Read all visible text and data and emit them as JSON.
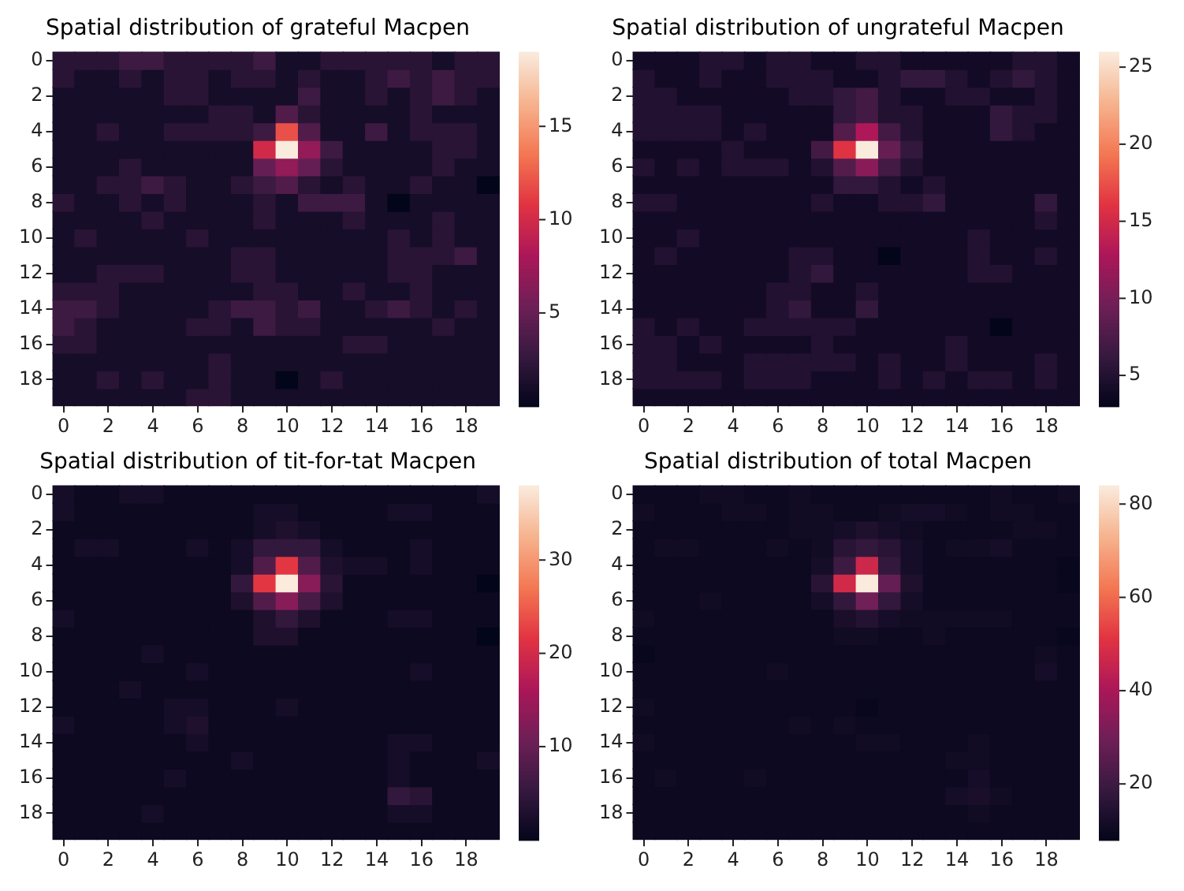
{
  "chart_data": [
    {
      "type": "heatmap",
      "title": "Spatial distribution of grateful Macpen",
      "categories": [
        "0",
        null,
        "2",
        null,
        "4",
        null,
        "6",
        null,
        "8",
        null,
        "10",
        null,
        "12",
        null,
        "14",
        null,
        "16",
        null,
        "18",
        null
      ],
      "y_categories": [
        "0",
        null,
        "2",
        null,
        "4",
        null,
        "6",
        null,
        "8",
        null,
        "10",
        null,
        "12",
        null,
        "14",
        null,
        "16",
        null,
        "18",
        null
      ],
      "clim": [
        0,
        19
      ],
      "cticks": [
        5,
        10,
        15
      ],
      "cells": [
        [
          2,
          2,
          2,
          3,
          3,
          2,
          2,
          2,
          2,
          3,
          1,
          1,
          2,
          2,
          2,
          2,
          2,
          1,
          2,
          2
        ],
        [
          2,
          1,
          1,
          2,
          1,
          2,
          2,
          1,
          2,
          2,
          1,
          2,
          1,
          1,
          2,
          3,
          2,
          3,
          2,
          2
        ],
        [
          1,
          1,
          1,
          1,
          1,
          2,
          2,
          1,
          1,
          1,
          1,
          3,
          1,
          1,
          2,
          1,
          2,
          3,
          2,
          1
        ],
        [
          1,
          1,
          1,
          1,
          1,
          1,
          1,
          2,
          2,
          1,
          4,
          2,
          1,
          1,
          1,
          1,
          2,
          1,
          1,
          1
        ],
        [
          1,
          1,
          2,
          1,
          1,
          2,
          2,
          2,
          2,
          3,
          12,
          4,
          1,
          1,
          3,
          1,
          2,
          2,
          2,
          1
        ],
        [
          1,
          1,
          1,
          1,
          1,
          1,
          1,
          1,
          1,
          10,
          19,
          7,
          3,
          1,
          1,
          1,
          1,
          2,
          2,
          1
        ],
        [
          1,
          1,
          1,
          2,
          1,
          1,
          1,
          1,
          1,
          5,
          7,
          5,
          2,
          1,
          1,
          1,
          1,
          2,
          1,
          1
        ],
        [
          1,
          1,
          2,
          2,
          3,
          2,
          1,
          1,
          2,
          3,
          4,
          2,
          1,
          2,
          1,
          1,
          2,
          1,
          1,
          0
        ],
        [
          2,
          1,
          1,
          2,
          1,
          2,
          1,
          1,
          1,
          2,
          1,
          3,
          3,
          3,
          1,
          0,
          1,
          1,
          1,
          1
        ],
        [
          1,
          1,
          1,
          1,
          2,
          1,
          1,
          1,
          1,
          2,
          1,
          1,
          1,
          2,
          1,
          1,
          1,
          2,
          1,
          1
        ],
        [
          1,
          2,
          1,
          1,
          1,
          1,
          2,
          1,
          1,
          1,
          1,
          1,
          1,
          1,
          1,
          2,
          1,
          2,
          1,
          1
        ],
        [
          1,
          1,
          1,
          1,
          1,
          1,
          1,
          1,
          2,
          2,
          1,
          1,
          1,
          1,
          1,
          2,
          2,
          2,
          3,
          1
        ],
        [
          1,
          1,
          2,
          2,
          2,
          1,
          1,
          1,
          2,
          2,
          1,
          1,
          1,
          1,
          1,
          2,
          2,
          1,
          1,
          1
        ],
        [
          2,
          2,
          2,
          1,
          1,
          1,
          1,
          1,
          1,
          2,
          2,
          1,
          1,
          2,
          1,
          1,
          2,
          1,
          1,
          1
        ],
        [
          3,
          3,
          2,
          1,
          1,
          1,
          1,
          2,
          3,
          3,
          2,
          3,
          1,
          1,
          2,
          3,
          2,
          1,
          2,
          1
        ],
        [
          3,
          2,
          1,
          1,
          1,
          1,
          2,
          2,
          1,
          3,
          2,
          2,
          1,
          1,
          1,
          1,
          1,
          2,
          1,
          1
        ],
        [
          2,
          2,
          1,
          1,
          1,
          1,
          1,
          1,
          1,
          1,
          1,
          1,
          1,
          2,
          2,
          1,
          1,
          1,
          1,
          1
        ],
        [
          1,
          1,
          1,
          1,
          1,
          1,
          1,
          2,
          1,
          1,
          1,
          1,
          1,
          1,
          1,
          1,
          1,
          1,
          1,
          1
        ],
        [
          1,
          1,
          2,
          1,
          2,
          1,
          1,
          2,
          1,
          1,
          0,
          1,
          2,
          1,
          1,
          1,
          1,
          1,
          1,
          1
        ],
        [
          1,
          1,
          1,
          1,
          1,
          1,
          2,
          2,
          1,
          1,
          1,
          1,
          1,
          1,
          1,
          1,
          1,
          1,
          1,
          1
        ]
      ]
    },
    {
      "type": "heatmap",
      "title": "Spatial distribution of ungrateful Macpen",
      "categories": [
        "0",
        null,
        "2",
        null,
        "4",
        null,
        "6",
        null,
        "8",
        null,
        "10",
        null,
        "12",
        null,
        "14",
        null,
        "16",
        null,
        "18",
        null
      ],
      "y_categories": [
        "0",
        null,
        "2",
        null,
        "4",
        null,
        "6",
        null,
        "8",
        null,
        "10",
        null,
        "12",
        null,
        "14",
        null,
        "16",
        null,
        "18",
        null
      ],
      "clim": [
        3,
        26
      ],
      "cticks": [
        5,
        10,
        15,
        20,
        25
      ],
      "cells": [
        [
          4,
          4,
          4,
          5,
          5,
          4,
          5,
          5,
          4,
          4,
          5,
          5,
          4,
          4,
          4,
          4,
          4,
          5,
          5,
          4
        ],
        [
          5,
          4,
          4,
          5,
          4,
          4,
          5,
          5,
          5,
          4,
          4,
          5,
          6,
          6,
          5,
          4,
          5,
          6,
          5,
          4
        ],
        [
          5,
          5,
          4,
          4,
          4,
          4,
          4,
          5,
          5,
          6,
          7,
          5,
          4,
          4,
          5,
          5,
          4,
          4,
          5,
          4
        ],
        [
          5,
          5,
          5,
          5,
          4,
          4,
          4,
          4,
          4,
          6,
          7,
          5,
          5,
          4,
          4,
          4,
          6,
          5,
          5,
          4
        ],
        [
          5,
          5,
          5,
          5,
          4,
          5,
          4,
          4,
          4,
          8,
          13,
          7,
          5,
          4,
          4,
          4,
          6,
          5,
          4,
          4
        ],
        [
          4,
          4,
          4,
          4,
          5,
          4,
          4,
          4,
          7,
          16,
          26,
          9,
          6,
          4,
          4,
          4,
          4,
          4,
          4,
          4
        ],
        [
          5,
          4,
          5,
          4,
          5,
          5,
          5,
          4,
          5,
          8,
          11,
          7,
          5,
          4,
          4,
          4,
          4,
          4,
          4,
          4
        ],
        [
          4,
          4,
          4,
          4,
          4,
          4,
          4,
          4,
          4,
          6,
          6,
          5,
          4,
          5,
          4,
          4,
          4,
          4,
          4,
          4
        ],
        [
          5,
          5,
          4,
          4,
          4,
          4,
          4,
          4,
          5,
          4,
          4,
          5,
          5,
          6,
          4,
          4,
          4,
          4,
          6,
          4
        ],
        [
          4,
          4,
          4,
          4,
          4,
          4,
          4,
          4,
          4,
          4,
          4,
          4,
          4,
          4,
          4,
          4,
          4,
          4,
          5,
          4
        ],
        [
          4,
          4,
          5,
          4,
          4,
          4,
          4,
          4,
          4,
          4,
          4,
          4,
          4,
          4,
          4,
          5,
          4,
          4,
          4,
          4
        ],
        [
          4,
          5,
          4,
          4,
          4,
          4,
          4,
          5,
          5,
          4,
          4,
          3,
          4,
          4,
          4,
          5,
          4,
          4,
          5,
          4
        ],
        [
          4,
          4,
          4,
          4,
          4,
          4,
          4,
          5,
          6,
          4,
          4,
          4,
          4,
          4,
          4,
          5,
          5,
          4,
          4,
          4
        ],
        [
          4,
          4,
          4,
          4,
          4,
          4,
          5,
          5,
          4,
          4,
          5,
          4,
          4,
          4,
          4,
          4,
          4,
          4,
          4,
          4
        ],
        [
          4,
          4,
          4,
          4,
          4,
          4,
          5,
          6,
          4,
          4,
          6,
          4,
          4,
          4,
          4,
          4,
          4,
          4,
          4,
          4
        ],
        [
          5,
          4,
          5,
          4,
          4,
          5,
          5,
          5,
          5,
          5,
          4,
          4,
          4,
          4,
          4,
          4,
          3,
          4,
          4,
          4
        ],
        [
          5,
          5,
          4,
          5,
          4,
          4,
          4,
          4,
          5,
          4,
          4,
          4,
          4,
          4,
          5,
          4,
          4,
          4,
          4,
          4
        ],
        [
          5,
          5,
          4,
          4,
          4,
          5,
          5,
          5,
          5,
          5,
          4,
          5,
          4,
          4,
          5,
          4,
          4,
          4,
          5,
          4
        ],
        [
          5,
          5,
          5,
          5,
          4,
          5,
          5,
          5,
          4,
          4,
          4,
          5,
          4,
          5,
          4,
          5,
          5,
          4,
          5,
          4
        ],
        [
          4,
          4,
          4,
          4,
          4,
          4,
          4,
          4,
          4,
          4,
          4,
          4,
          4,
          4,
          4,
          4,
          4,
          4,
          4,
          4
        ]
      ]
    },
    {
      "type": "heatmap",
      "title": "Spatial distribution of tit-for-tat Macpen",
      "categories": [
        "0",
        null,
        "2",
        null,
        "4",
        null,
        "6",
        null,
        "8",
        null,
        "10",
        null,
        "12",
        null,
        "14",
        null,
        "16",
        null,
        "18",
        null
      ],
      "y_categories": [
        "0",
        null,
        "2",
        null,
        "4",
        null,
        "6",
        null,
        "8",
        null,
        "10",
        null,
        "12",
        null,
        "14",
        null,
        "16",
        null,
        "18",
        null
      ],
      "clim": [
        0,
        38
      ],
      "cticks": [
        10,
        20,
        30
      ],
      "cells": [
        [
          2,
          1,
          1,
          2,
          2,
          1,
          1,
          1,
          1,
          1,
          1,
          1,
          1,
          1,
          1,
          1,
          1,
          1,
          1,
          2
        ],
        [
          2,
          1,
          1,
          1,
          1,
          1,
          1,
          1,
          1,
          2,
          2,
          1,
          1,
          1,
          1,
          2,
          2,
          1,
          1,
          1
        ],
        [
          1,
          1,
          1,
          1,
          1,
          1,
          1,
          1,
          1,
          2,
          3,
          2,
          1,
          1,
          1,
          1,
          1,
          1,
          1,
          1
        ],
        [
          1,
          2,
          2,
          1,
          1,
          1,
          2,
          1,
          2,
          5,
          5,
          5,
          2,
          1,
          1,
          1,
          2,
          1,
          1,
          1
        ],
        [
          1,
          1,
          1,
          1,
          1,
          1,
          1,
          1,
          2,
          8,
          22,
          8,
          3,
          2,
          2,
          1,
          2,
          1,
          1,
          1
        ],
        [
          1,
          1,
          1,
          1,
          1,
          1,
          1,
          1,
          5,
          22,
          38,
          13,
          4,
          1,
          1,
          1,
          1,
          1,
          1,
          0
        ],
        [
          1,
          1,
          1,
          1,
          1,
          1,
          1,
          1,
          3,
          8,
          13,
          7,
          3,
          1,
          1,
          1,
          1,
          1,
          1,
          1
        ],
        [
          2,
          1,
          1,
          1,
          1,
          1,
          1,
          1,
          1,
          3,
          5,
          3,
          1,
          1,
          1,
          2,
          2,
          1,
          1,
          1
        ],
        [
          1,
          1,
          1,
          1,
          1,
          1,
          1,
          1,
          1,
          3,
          3,
          1,
          1,
          1,
          1,
          1,
          1,
          1,
          1,
          0
        ],
        [
          1,
          1,
          1,
          1,
          2,
          1,
          1,
          1,
          1,
          1,
          1,
          1,
          1,
          1,
          1,
          1,
          1,
          1,
          1,
          1
        ],
        [
          1,
          1,
          1,
          1,
          1,
          1,
          2,
          1,
          1,
          1,
          1,
          1,
          1,
          1,
          1,
          1,
          2,
          1,
          1,
          1
        ],
        [
          1,
          1,
          1,
          2,
          1,
          1,
          1,
          1,
          1,
          1,
          1,
          1,
          1,
          1,
          1,
          1,
          1,
          1,
          1,
          1
        ],
        [
          1,
          1,
          1,
          1,
          1,
          2,
          2,
          1,
          1,
          1,
          2,
          1,
          1,
          1,
          1,
          1,
          1,
          1,
          1,
          1
        ],
        [
          2,
          1,
          1,
          1,
          1,
          2,
          3,
          1,
          1,
          1,
          1,
          1,
          1,
          1,
          1,
          1,
          1,
          1,
          1,
          1
        ],
        [
          1,
          1,
          1,
          1,
          1,
          1,
          2,
          1,
          1,
          1,
          1,
          1,
          1,
          1,
          1,
          2,
          2,
          1,
          1,
          1
        ],
        [
          1,
          1,
          1,
          1,
          1,
          1,
          1,
          1,
          2,
          1,
          1,
          1,
          1,
          1,
          1,
          2,
          1,
          1,
          1,
          2
        ],
        [
          1,
          1,
          1,
          1,
          1,
          2,
          1,
          1,
          1,
          1,
          1,
          1,
          1,
          1,
          1,
          2,
          1,
          1,
          1,
          1
        ],
        [
          1,
          1,
          1,
          1,
          1,
          1,
          1,
          1,
          1,
          1,
          1,
          1,
          1,
          1,
          1,
          5,
          4,
          1,
          1,
          1
        ],
        [
          1,
          1,
          1,
          1,
          2,
          1,
          1,
          1,
          1,
          1,
          1,
          1,
          1,
          1,
          1,
          2,
          2,
          1,
          1,
          1
        ],
        [
          1,
          1,
          1,
          1,
          1,
          1,
          1,
          1,
          1,
          1,
          1,
          1,
          1,
          1,
          1,
          1,
          1,
          1,
          1,
          1
        ]
      ]
    },
    {
      "type": "heatmap",
      "title": "Spatial distribution of total Macpen",
      "categories": [
        "0",
        null,
        "2",
        null,
        "4",
        null,
        "6",
        null,
        "8",
        null,
        "10",
        null,
        "12",
        null,
        "14",
        null,
        "16",
        null,
        "18",
        null
      ],
      "y_categories": [
        "0",
        null,
        "2",
        null,
        "4",
        null,
        "6",
        null,
        "8",
        null,
        "10",
        null,
        "12",
        null,
        "14",
        null,
        "16",
        null,
        "18",
        null
      ],
      "clim": [
        8,
        84
      ],
      "cticks": [
        20,
        40,
        60,
        80
      ],
      "cells": [
        [
          10,
          10,
          10,
          11,
          11,
          10,
          10,
          11,
          10,
          10,
          10,
          10,
          10,
          10,
          10,
          10,
          11,
          10,
          10,
          11
        ],
        [
          11,
          10,
          10,
          10,
          11,
          11,
          10,
          11,
          11,
          10,
          10,
          11,
          12,
          12,
          11,
          10,
          11,
          11,
          10,
          10
        ],
        [
          10,
          10,
          10,
          10,
          10,
          10,
          10,
          11,
          11,
          12,
          14,
          12,
          11,
          10,
          10,
          10,
          10,
          11,
          11,
          10
        ],
        [
          10,
          11,
          11,
          10,
          10,
          10,
          11,
          10,
          11,
          16,
          18,
          16,
          12,
          10,
          11,
          11,
          12,
          10,
          10,
          10
        ],
        [
          10,
          10,
          10,
          10,
          10,
          10,
          10,
          10,
          12,
          20,
          47,
          18,
          12,
          10,
          10,
          10,
          10,
          10,
          10,
          9
        ],
        [
          10,
          10,
          10,
          10,
          10,
          10,
          10,
          10,
          16,
          48,
          84,
          28,
          14,
          10,
          10,
          10,
          10,
          10,
          10,
          9
        ],
        [
          10,
          10,
          10,
          11,
          10,
          10,
          10,
          10,
          12,
          18,
          30,
          18,
          12,
          10,
          10,
          10,
          10,
          10,
          10,
          10
        ],
        [
          11,
          10,
          10,
          10,
          10,
          10,
          10,
          10,
          10,
          13,
          15,
          12,
          11,
          11,
          11,
          11,
          11,
          10,
          10,
          10
        ],
        [
          10,
          10,
          10,
          10,
          10,
          10,
          10,
          10,
          10,
          11,
          11,
          10,
          10,
          11,
          10,
          10,
          10,
          10,
          10,
          9
        ],
        [
          9,
          10,
          10,
          10,
          10,
          10,
          10,
          10,
          10,
          10,
          10,
          10,
          10,
          10,
          10,
          10,
          10,
          10,
          11,
          10
        ],
        [
          10,
          10,
          10,
          10,
          10,
          10,
          11,
          10,
          10,
          10,
          10,
          10,
          10,
          10,
          10,
          10,
          10,
          10,
          12,
          10
        ],
        [
          10,
          10,
          10,
          10,
          10,
          10,
          10,
          10,
          10,
          10,
          10,
          10,
          10,
          10,
          10,
          10,
          10,
          10,
          10,
          10
        ],
        [
          11,
          10,
          10,
          10,
          10,
          10,
          10,
          10,
          10,
          10,
          9,
          10,
          10,
          10,
          10,
          10,
          10,
          10,
          10,
          10
        ],
        [
          10,
          10,
          10,
          10,
          10,
          10,
          10,
          11,
          10,
          11,
          10,
          10,
          10,
          10,
          10,
          10,
          10,
          10,
          10,
          10
        ],
        [
          11,
          10,
          10,
          10,
          10,
          10,
          10,
          10,
          10,
          10,
          11,
          11,
          10,
          10,
          10,
          11,
          10,
          10,
          10,
          10
        ],
        [
          10,
          10,
          10,
          10,
          10,
          10,
          10,
          10,
          10,
          10,
          10,
          10,
          10,
          10,
          11,
          11,
          10,
          10,
          10,
          10
        ],
        [
          10,
          11,
          10,
          10,
          10,
          11,
          10,
          10,
          10,
          10,
          10,
          10,
          10,
          10,
          10,
          12,
          10,
          10,
          10,
          10
        ],
        [
          10,
          10,
          10,
          10,
          10,
          10,
          10,
          10,
          10,
          10,
          10,
          10,
          10,
          10,
          12,
          13,
          11,
          10,
          10,
          10
        ],
        [
          10,
          10,
          10,
          10,
          10,
          10,
          10,
          10,
          10,
          10,
          10,
          10,
          10,
          10,
          10,
          11,
          10,
          10,
          10,
          10
        ],
        [
          10,
          10,
          10,
          10,
          10,
          10,
          10,
          10,
          10,
          10,
          10,
          10,
          10,
          10,
          10,
          10,
          10,
          10,
          10,
          10
        ]
      ]
    }
  ]
}
